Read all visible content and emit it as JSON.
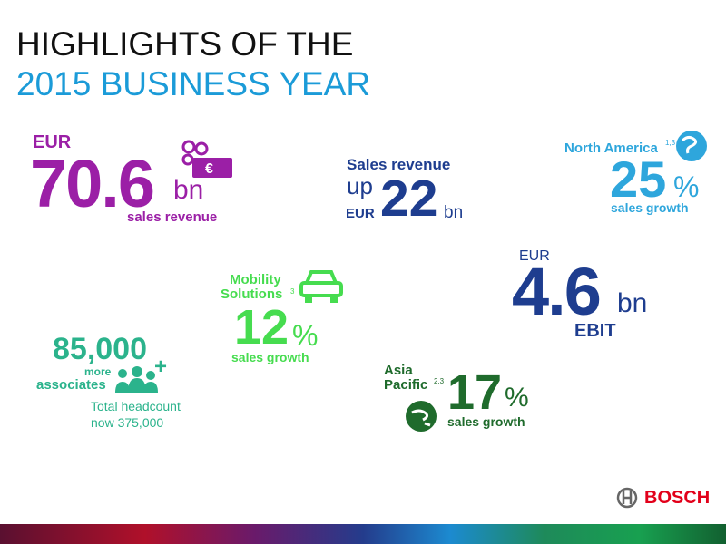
{
  "header": {
    "line1": "HIGHLIGHTS OF THE",
    "line2": "2015 BUSINESS YEAR"
  },
  "sales": {
    "currency": "EUR",
    "value": "70.6",
    "unit": "bn",
    "label": "sales revenue"
  },
  "sales_up": {
    "title": "Sales revenue",
    "up": "up",
    "currency": "EUR",
    "value": "22",
    "unit": "bn"
  },
  "north_america": {
    "name": "North America",
    "footnote": "1,3",
    "value": "25",
    "unit": "%",
    "label": "sales growth"
  },
  "ebit": {
    "currency": "EUR",
    "value": "4.6",
    "unit": "bn",
    "label": "EBIT"
  },
  "mobility": {
    "name_line1": "Mobility",
    "name_line2": "Solutions",
    "footnote": "3",
    "value": "12",
    "unit": "%",
    "label": "sales growth"
  },
  "associates": {
    "value": "85,000",
    "more": "more",
    "label": "associates",
    "plus": "+",
    "headcount_line1": "Total headcount",
    "headcount_line2": "now 375,000"
  },
  "asia_pacific": {
    "name_line1": "Asia",
    "name_line2": "Pacific",
    "footnote": "2,3",
    "value": "17",
    "unit": "%",
    "label": "sales growth"
  },
  "footer": {
    "brand": "BOSCH"
  }
}
